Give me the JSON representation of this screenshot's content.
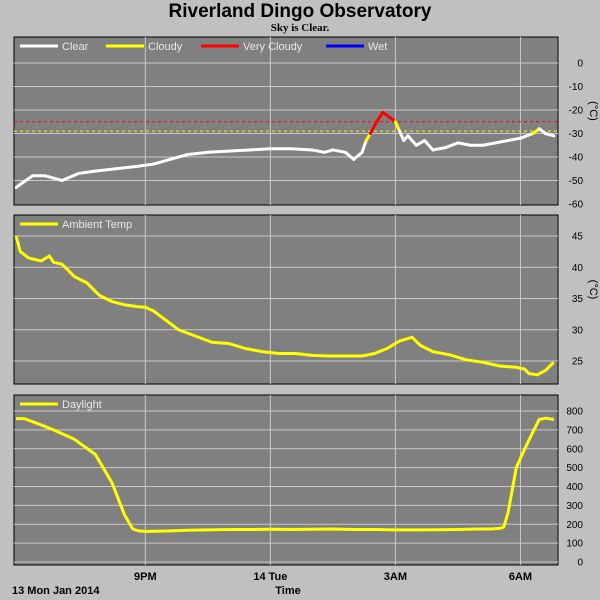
{
  "header": {
    "title": "Riverland Dingo Observatory",
    "subtitle": "Sky is Clear."
  },
  "colors": {
    "background": "#c0c0c0",
    "plot_bg": "#808080",
    "grid": "#c8c8c8",
    "clear": "#ffffff",
    "cloudy": "#ffff00",
    "very_cloudy": "#ff0000",
    "wet": "#0000ff"
  },
  "x_axis": {
    "title": "Time",
    "start_label": "13 Mon Jan 2014",
    "ticks": [
      "9PM",
      "14 Tue",
      "3AM",
      "6AM"
    ],
    "range_hours": [
      17.85,
      30.9
    ],
    "tick_hours": [
      21,
      24,
      27,
      30
    ]
  },
  "chart_data": [
    {
      "type": "line",
      "name": "sky",
      "legend": [
        "Clear",
        "Cloudy",
        "Very Cloudy",
        "Wet"
      ],
      "unit": "(°C)",
      "ylim": [
        -60,
        5
      ],
      "yticks": [
        0,
        -10,
        -20,
        -30,
        -40,
        -50,
        -60
      ],
      "grid": true,
      "threshold_lines": [
        {
          "y": -25,
          "color": "#ff0000"
        },
        {
          "y": -29,
          "color": "#ffff00"
        }
      ],
      "x": [
        17.9,
        18.05,
        18.3,
        18.6,
        19.0,
        19.4,
        19.8,
        20.3,
        20.8,
        21.2,
        21.6,
        22.0,
        22.5,
        23.0,
        23.5,
        24.0,
        24.5,
        25.0,
        25.3,
        25.5,
        25.8,
        26.0,
        26.2,
        26.3,
        26.4,
        26.55,
        26.7,
        26.85,
        27.0,
        27.1,
        27.2,
        27.3,
        27.5,
        27.7,
        27.9,
        28.2,
        28.5,
        28.8,
        29.1,
        29.4,
        29.7,
        30.0,
        30.3,
        30.45,
        30.6,
        30.8
      ],
      "y": [
        -53,
        -51,
        -48,
        -48,
        -50,
        -47,
        -46,
        -45,
        -44,
        -43,
        -41,
        -39,
        -38,
        -37.5,
        -37,
        -36.5,
        -36.5,
        -37,
        -38,
        -37,
        -38,
        -41,
        -38,
        -33,
        -30,
        -25,
        -21,
        -23,
        -25,
        -29,
        -33,
        -31,
        -35,
        -33,
        -37,
        -36,
        -34,
        -35,
        -35,
        -34,
        -33,
        -32,
        -30,
        -28,
        -30,
        -31
      ],
      "sky_condition": [
        "Clear",
        "Clear",
        "Clear",
        "Clear",
        "Clear",
        "Clear",
        "Clear",
        "Clear",
        "Clear",
        "Clear",
        "Clear",
        "Clear",
        "Clear",
        "Clear",
        "Clear",
        "Clear",
        "Clear",
        "Clear",
        "Clear",
        "Clear",
        "Clear",
        "Clear",
        "Clear",
        "Clear",
        "Cloudy",
        "Very Cloudy",
        "Very Cloudy",
        "Very Cloudy",
        "Very Cloudy",
        "Cloudy",
        "Clear",
        "Clear",
        "Clear",
        "Clear",
        "Clear",
        "Clear",
        "Clear",
        "Clear",
        "Clear",
        "Clear",
        "Clear",
        "Clear",
        "Clear",
        "Cloudy",
        "Clear",
        "Clear"
      ]
    },
    {
      "type": "line",
      "name": "Ambient Temp",
      "legend": [
        "Ambient Temp"
      ],
      "unit": "(°C)",
      "ylim": [
        22,
        46.5
      ],
      "yticks": [
        45,
        40,
        35,
        30,
        25
      ],
      "grid": true,
      "color": "#ffff00",
      "x": [
        17.9,
        18.0,
        18.2,
        18.5,
        18.7,
        18.8,
        19.0,
        19.3,
        19.6,
        19.9,
        20.2,
        20.5,
        20.8,
        21.0,
        21.2,
        21.5,
        21.8,
        22.2,
        22.6,
        23.0,
        23.4,
        23.8,
        24.2,
        24.6,
        25.0,
        25.4,
        25.8,
        26.2,
        26.5,
        26.8,
        27.1,
        27.4,
        27.6,
        27.9,
        28.3,
        28.7,
        29.1,
        29.5,
        29.9,
        30.1,
        30.2,
        30.4,
        30.6,
        30.8
      ],
      "y": [
        45,
        42.5,
        41.5,
        41,
        41.8,
        40.8,
        40.5,
        38.5,
        37.5,
        35.5,
        34.5,
        34,
        33.7,
        33.6,
        33,
        31.5,
        30,
        29,
        28,
        27.8,
        27,
        26.5,
        26.2,
        26.2,
        25.9,
        25.8,
        25.8,
        25.8,
        26.2,
        27,
        28.2,
        28.8,
        27.5,
        26.5,
        26,
        25.2,
        24.8,
        24.2,
        24,
        23.7,
        23,
        22.8,
        23.5,
        24.8
      ]
    },
    {
      "type": "line",
      "name": "Daylight",
      "legend": [
        "Daylight"
      ],
      "ylim": [
        0,
        820
      ],
      "yticks": [
        800,
        700,
        600,
        500,
        400,
        300,
        200,
        100,
        0
      ],
      "grid": true,
      "color": "#ffff00",
      "x": [
        17.9,
        18.1,
        18.4,
        18.8,
        19.3,
        19.8,
        20.2,
        20.5,
        20.7,
        20.85,
        21.0,
        21.2,
        21.6,
        22.0,
        22.5,
        23.0,
        23.5,
        24.0,
        24.5,
        25.0,
        25.5,
        26.0,
        26.5,
        27.0,
        27.5,
        28.0,
        28.5,
        29.0,
        29.3,
        29.5,
        29.6,
        29.7,
        29.9,
        30.1,
        30.3,
        30.45,
        30.6,
        30.8
      ],
      "y": [
        760,
        760,
        735,
        700,
        650,
        570,
        420,
        250,
        175,
        165,
        162,
        163,
        165,
        168,
        170,
        172,
        172,
        173,
        172,
        174,
        175,
        172,
        172,
        170,
        170,
        171,
        172,
        175,
        175,
        178,
        185,
        260,
        500,
        600,
        690,
        755,
        762,
        755
      ]
    }
  ]
}
